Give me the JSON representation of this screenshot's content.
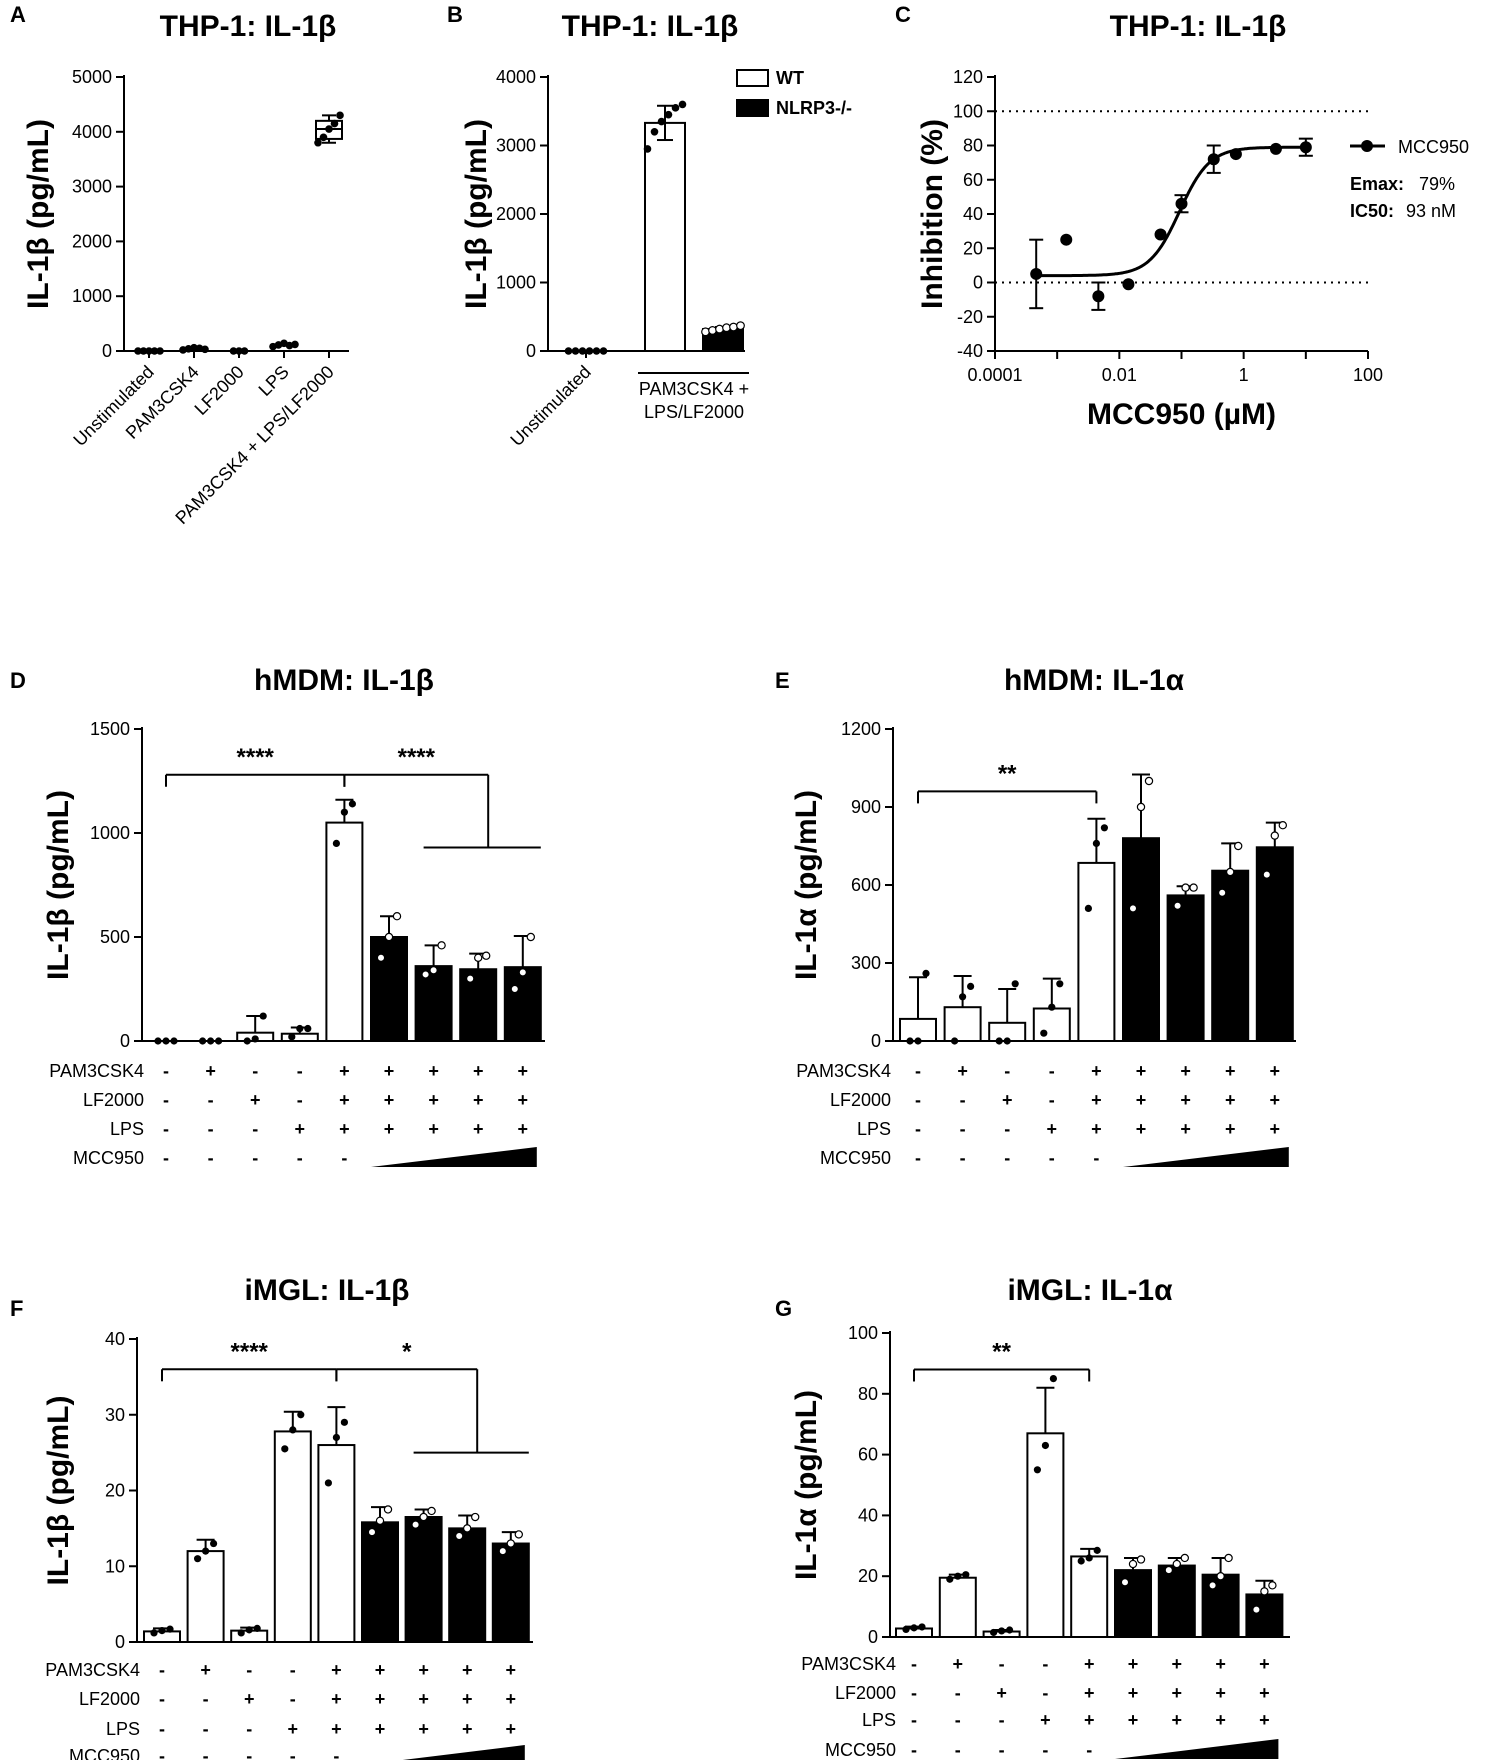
{
  "figure": {
    "background": "#ffffff",
    "colors": {
      "wt_fill": "#ffffff",
      "nlrp3_fill": "#000000",
      "line": "#000000"
    },
    "row_labels": [
      "PAM3CSK4",
      "LF2000",
      "LPS",
      "MCC950"
    ]
  },
  "chart_data": [
    {
      "id": "A",
      "letter": "A",
      "type": "box",
      "title": "THP-1: IL-1β",
      "ylabel": "IL-1β (pg/mL)",
      "ylim": [
        0,
        5000
      ],
      "yticks": [
        0,
        1000,
        2000,
        3000,
        4000,
        5000
      ],
      "categories": [
        "Unstimulated",
        "PAM3CSK4",
        "LF2000",
        "LPS",
        "PAM3CSK4 + LPS/LF2000"
      ],
      "points": [
        [
          0,
          0,
          0,
          0,
          0
        ],
        [
          20,
          40,
          60,
          50,
          30
        ],
        [
          0,
          0,
          0
        ],
        [
          80,
          110,
          140,
          100,
          120
        ],
        [
          3800,
          3900,
          4050,
          4150,
          4300
        ]
      ],
      "box": {
        "min": 3800,
        "q1": 3870,
        "median": 4050,
        "q3": 4200,
        "max": 4300
      }
    },
    {
      "id": "B",
      "letter": "B",
      "type": "bar",
      "title": "THP-1: IL-1β",
      "ylabel": "IL-1β (pg/mL)",
      "ylim": [
        0,
        4000
      ],
      "yticks": [
        0,
        1000,
        2000,
        3000,
        4000
      ],
      "categories": [
        "Unstimulated",
        "PAM3CSK4 + LPS/LF2000"
      ],
      "group_label_line1": "PAM3CSK4 +",
      "group_label_line2": "LPS/LF2000",
      "legend": [
        {
          "name": "WT",
          "color": "#ffffff"
        },
        {
          "name": "NLRP3-/-",
          "color": "#000000"
        }
      ],
      "series": [
        {
          "name": "Unstimulated",
          "value": 0,
          "sd": 0,
          "fill": "#ffffff",
          "points": [
            0,
            0,
            0,
            0,
            0,
            0
          ]
        },
        {
          "name": "WT",
          "value": 3330,
          "sd": 250,
          "fill": "#ffffff",
          "points": [
            2950,
            3200,
            3350,
            3450,
            3550,
            3600
          ]
        },
        {
          "name": "NLRP3-/-",
          "value": 320,
          "sd": 30,
          "fill": "#000000",
          "points": [
            280,
            300,
            320,
            340,
            350,
            370
          ]
        }
      ]
    },
    {
      "id": "C",
      "letter": "C",
      "type": "scatter",
      "title": "THP-1: IL-1β",
      "ylabel": "Inhibition (%)",
      "xlabel": "MCC950 (µM)",
      "xscale": "log",
      "xlim": [
        0.0001,
        100
      ],
      "xticks": [
        0.0001,
        0.01,
        1,
        100
      ],
      "xtick_labels": [
        "0.0001",
        "0.01",
        "1",
        "100"
      ],
      "ylim": [
        -40,
        120
      ],
      "yticks": [
        -40,
        -20,
        0,
        20,
        40,
        60,
        80,
        100,
        120
      ],
      "ref_lines": [
        0,
        100
      ],
      "points": [
        {
          "x": 0.00046,
          "y": 5,
          "err": 20
        },
        {
          "x": 0.0014,
          "y": 25,
          "err": 0
        },
        {
          "x": 0.0046,
          "y": -8,
          "err": 8
        },
        {
          "x": 0.014,
          "y": -1,
          "err": 0
        },
        {
          "x": 0.046,
          "y": 28,
          "err": 0
        },
        {
          "x": 0.1,
          "y": 46,
          "err": 5
        },
        {
          "x": 0.33,
          "y": 72,
          "err": 8
        },
        {
          "x": 0.75,
          "y": 75,
          "err": 0
        },
        {
          "x": 3.3,
          "y": 78,
          "err": 0
        },
        {
          "x": 10,
          "y": 79,
          "err": 5
        }
      ],
      "fit": {
        "bottom": 4,
        "top": 79,
        "ic50_um": 0.093,
        "hill": 1.8
      },
      "legend_series": "MCC950",
      "emax_label": "Emax:",
      "emax_value": "79%",
      "ic50_label": "IC50:",
      "ic50_value": "93 nM"
    },
    {
      "id": "D",
      "letter": "D",
      "type": "bar",
      "title": "hMDM: IL-1β",
      "ylabel": "IL-1β (pg/mL)",
      "ylim": [
        0,
        1500
      ],
      "yticks": [
        0,
        500,
        1000,
        1500
      ],
      "conditions": {
        "PAM3CSK4": [
          "-",
          "+",
          "-",
          "-",
          "+",
          "+",
          "+",
          "+",
          "+"
        ],
        "LF2000": [
          "-",
          "-",
          "+",
          "-",
          "+",
          "+",
          "+",
          "+",
          "+"
        ],
        "LPS": [
          "-",
          "-",
          "-",
          "+",
          "+",
          "+",
          "+",
          "+",
          "+"
        ],
        "MCC950": [
          "-",
          "-",
          "-",
          "-",
          "-",
          "ramp",
          "ramp",
          "ramp",
          "ramp"
        ]
      },
      "bars": [
        {
          "value": 0,
          "sd": 0,
          "fill": "#ffffff",
          "points": [
            0,
            0,
            0
          ]
        },
        {
          "value": 0,
          "sd": 0,
          "fill": "#ffffff",
          "points": [
            0,
            0,
            0
          ]
        },
        {
          "value": 40,
          "sd": 80,
          "fill": "#ffffff",
          "points": [
            0,
            10,
            120
          ]
        },
        {
          "value": 35,
          "sd": 30,
          "fill": "#ffffff",
          "points": [
            20,
            60,
            60
          ]
        },
        {
          "value": 1050,
          "sd": 110,
          "fill": "#ffffff",
          "points": [
            950,
            1100,
            1140
          ]
        },
        {
          "value": 500,
          "sd": 100,
          "fill": "#000000",
          "points": [
            400,
            500,
            600
          ]
        },
        {
          "value": 360,
          "sd": 100,
          "fill": "#000000",
          "points": [
            320,
            340,
            460
          ]
        },
        {
          "value": 345,
          "sd": 75,
          "fill": "#000000",
          "points": [
            300,
            400,
            410
          ]
        },
        {
          "value": 355,
          "sd": 150,
          "fill": "#000000",
          "points": [
            250,
            330,
            500
          ]
        }
      ],
      "significance": [
        {
          "label": "****",
          "from": 0,
          "to": 4,
          "y": 1280,
          "mode": "bracket"
        },
        {
          "label": "****",
          "from": 4,
          "to": 7,
          "y": 1280,
          "mode": "fork",
          "fork_y": 930,
          "fork_from": 6,
          "fork_to": 8
        }
      ]
    },
    {
      "id": "E",
      "letter": "E",
      "type": "bar",
      "title": "hMDM: IL-1α",
      "ylabel": "IL-1α (pg/mL)",
      "ylim": [
        0,
        1200
      ],
      "yticks": [
        0,
        300,
        600,
        900,
        1200
      ],
      "conditions": {
        "PAM3CSK4": [
          "-",
          "+",
          "-",
          "-",
          "+",
          "+",
          "+",
          "+",
          "+"
        ],
        "LF2000": [
          "-",
          "-",
          "+",
          "-",
          "+",
          "+",
          "+",
          "+",
          "+"
        ],
        "LPS": [
          "-",
          "-",
          "-",
          "+",
          "+",
          "+",
          "+",
          "+",
          "+"
        ],
        "MCC950": [
          "-",
          "-",
          "-",
          "-",
          "-",
          "ramp",
          "ramp",
          "ramp",
          "ramp"
        ]
      },
      "bars": [
        {
          "value": 85,
          "sd": 160,
          "fill": "#ffffff",
          "points": [
            0,
            0,
            260
          ]
        },
        {
          "value": 130,
          "sd": 120,
          "fill": "#ffffff",
          "points": [
            0,
            170,
            210
          ]
        },
        {
          "value": 70,
          "sd": 130,
          "fill": "#ffffff",
          "points": [
            0,
            0,
            220
          ]
        },
        {
          "value": 125,
          "sd": 115,
          "fill": "#ffffff",
          "points": [
            30,
            130,
            220
          ]
        },
        {
          "value": 685,
          "sd": 170,
          "fill": "#ffffff",
          "points": [
            510,
            760,
            820
          ]
        },
        {
          "value": 780,
          "sd": 245,
          "fill": "#000000",
          "points": [
            510,
            900,
            1000
          ]
        },
        {
          "value": 560,
          "sd": 35,
          "fill": "#000000",
          "points": [
            520,
            590,
            590
          ]
        },
        {
          "value": 655,
          "sd": 105,
          "fill": "#000000",
          "points": [
            570,
            650,
            750
          ]
        },
        {
          "value": 745,
          "sd": 95,
          "fill": "#000000",
          "points": [
            640,
            790,
            830
          ]
        }
      ],
      "significance": [
        {
          "label": "**",
          "from": 0,
          "to": 4,
          "y": 960,
          "mode": "bracket"
        }
      ]
    },
    {
      "id": "F",
      "letter": "F",
      "type": "bar",
      "title": "iMGL: IL-1β",
      "ylabel": "IL-1β (pg/mL)",
      "ylim": [
        0,
        40
      ],
      "yticks": [
        0,
        10,
        20,
        30,
        40
      ],
      "conditions": {
        "PAM3CSK4": [
          "-",
          "+",
          "-",
          "-",
          "+",
          "+",
          "+",
          "+",
          "+"
        ],
        "LF2000": [
          "-",
          "-",
          "+",
          "-",
          "+",
          "+",
          "+",
          "+",
          "+"
        ],
        "LPS": [
          "-",
          "-",
          "-",
          "+",
          "+",
          "+",
          "+",
          "+",
          "+"
        ],
        "MCC950": [
          "-",
          "-",
          "-",
          "-",
          "-",
          "ramp",
          "ramp",
          "ramp",
          "ramp"
        ]
      },
      "bars": [
        {
          "value": 1.4,
          "sd": 0.4,
          "fill": "#ffffff",
          "points": [
            1.2,
            1.5,
            1.7
          ]
        },
        {
          "value": 12,
          "sd": 1.5,
          "fill": "#ffffff",
          "points": [
            11,
            12,
            13
          ]
        },
        {
          "value": 1.5,
          "sd": 0.4,
          "fill": "#ffffff",
          "points": [
            1.2,
            1.6,
            1.8
          ]
        },
        {
          "value": 27.8,
          "sd": 2.6,
          "fill": "#ffffff",
          "points": [
            25.5,
            28,
            30
          ]
        },
        {
          "value": 26,
          "sd": 5,
          "fill": "#ffffff",
          "points": [
            21,
            27,
            29
          ]
        },
        {
          "value": 15.8,
          "sd": 2,
          "fill": "#000000",
          "points": [
            14.5,
            16,
            17.5
          ]
        },
        {
          "value": 16.5,
          "sd": 1,
          "fill": "#000000",
          "points": [
            15.5,
            16.5,
            17.3
          ]
        },
        {
          "value": 15,
          "sd": 1.7,
          "fill": "#000000",
          "points": [
            14,
            15,
            16.5
          ]
        },
        {
          "value": 13,
          "sd": 1.5,
          "fill": "#000000",
          "points": [
            12,
            13,
            14.2
          ]
        }
      ],
      "significance": [
        {
          "label": "****",
          "from": 0,
          "to": 4,
          "y": 36,
          "mode": "bracket"
        },
        {
          "label": "*",
          "from": 4,
          "to": 7,
          "y": 36,
          "mode": "fork",
          "fork_y": 25,
          "fork_from": 6,
          "fork_to": 8
        }
      ]
    },
    {
      "id": "G",
      "letter": "G",
      "type": "bar",
      "title": "iMGL: IL-1α",
      "ylabel": "IL-1α (pg/mL)",
      "ylim": [
        0,
        100
      ],
      "yticks": [
        0,
        20,
        40,
        60,
        80,
        100
      ],
      "conditions": {
        "PAM3CSK4": [
          "-",
          "+",
          "-",
          "-",
          "+",
          "+",
          "+",
          "+",
          "+"
        ],
        "LF2000": [
          "-",
          "-",
          "+",
          "-",
          "+",
          "+",
          "+",
          "+",
          "+"
        ],
        "LPS": [
          "-",
          "-",
          "-",
          "+",
          "+",
          "+",
          "+",
          "+",
          "+"
        ],
        "MCC950": [
          "-",
          "-",
          "-",
          "-",
          "-",
          "ramp",
          "ramp",
          "ramp",
          "ramp"
        ]
      },
      "bars": [
        {
          "value": 2.8,
          "sd": 0.6,
          "fill": "#ffffff",
          "points": [
            2.5,
            3,
            3.3
          ]
        },
        {
          "value": 19.5,
          "sd": 1,
          "fill": "#ffffff",
          "points": [
            19,
            20,
            20.5
          ]
        },
        {
          "value": 1.8,
          "sd": 0.5,
          "fill": "#ffffff",
          "points": [
            1.5,
            2,
            2.3
          ]
        },
        {
          "value": 67,
          "sd": 15,
          "fill": "#ffffff",
          "points": [
            55,
            63,
            85
          ]
        },
        {
          "value": 26.5,
          "sd": 2.5,
          "fill": "#ffffff",
          "points": [
            25,
            26,
            28.5
          ]
        },
        {
          "value": 22,
          "sd": 4,
          "fill": "#000000",
          "points": [
            18,
            24,
            25.5
          ]
        },
        {
          "value": 23.5,
          "sd": 2.5,
          "fill": "#000000",
          "points": [
            22,
            24,
            26
          ]
        },
        {
          "value": 20.5,
          "sd": 5.5,
          "fill": "#000000",
          "points": [
            17,
            20,
            26
          ]
        },
        {
          "value": 14,
          "sd": 4.5,
          "fill": "#000000",
          "points": [
            9,
            15,
            17
          ]
        }
      ],
      "significance": [
        {
          "label": "**",
          "from": 0,
          "to": 4,
          "y": 88,
          "mode": "bracket"
        }
      ]
    }
  ]
}
